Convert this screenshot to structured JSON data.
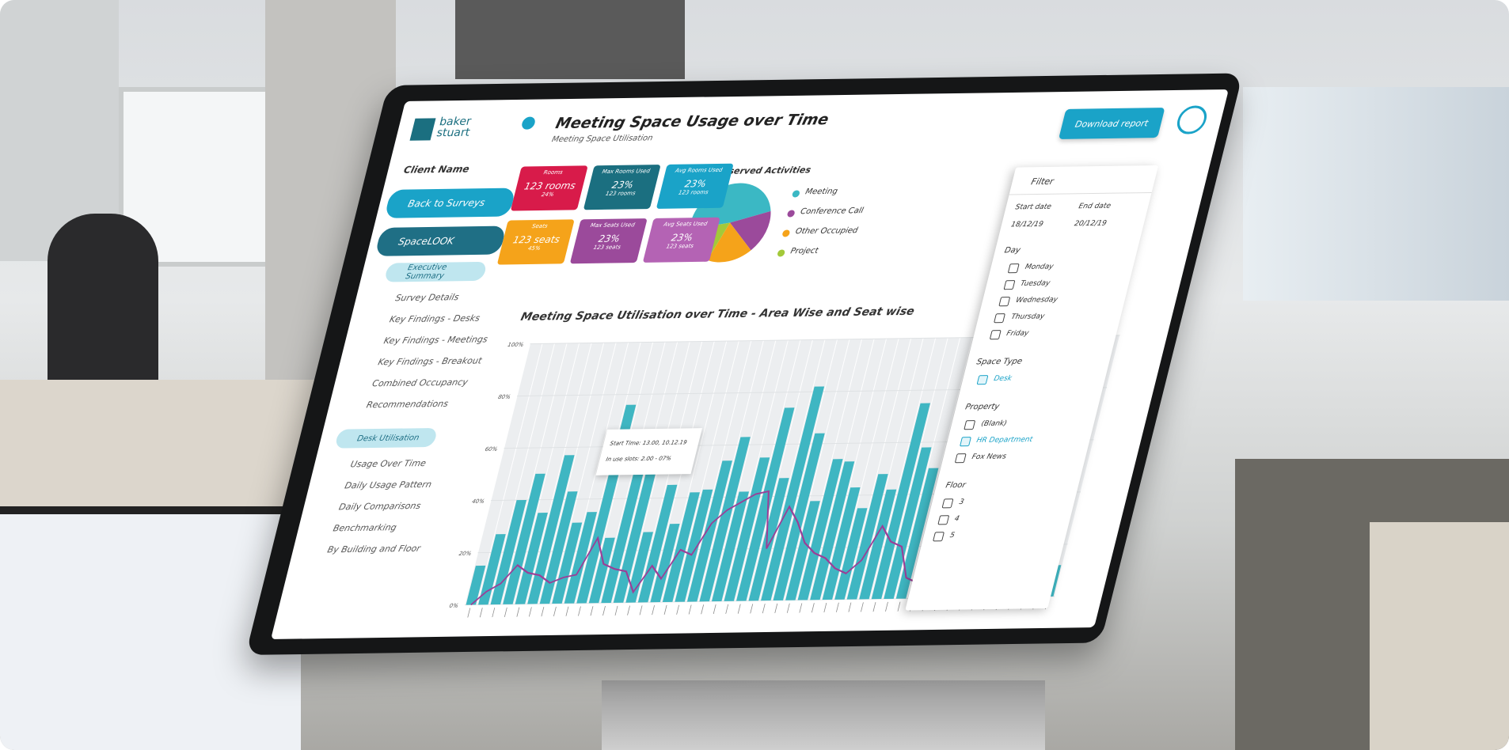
{
  "logo": "baker stuart",
  "header": {
    "title": "Meeting Space Usage over Time",
    "subtitle": "Meeting Space Utilisation",
    "download": "Download report"
  },
  "sidebar": {
    "client": "Client Name",
    "back": "Back to Surveys",
    "product": "SpaceLOOK",
    "sections": [
      {
        "title": "Executive Summary",
        "items": [
          "Survey Details",
          "Key Findings - Desks",
          "Key Findings - Meetings",
          "Key Findings - Breakout",
          "Combined Occupancy",
          "Recommendations"
        ]
      },
      {
        "title": "Desk Utilisation",
        "items": [
          "Usage Over Time",
          "Daily Usage Pattern",
          "Daily Comparisons",
          "Benchmarking",
          "By Building and Floor"
        ]
      }
    ]
  },
  "kpis": [
    {
      "label": "Rooms",
      "value": "123 rooms",
      "sub": "24%",
      "color": "#d81b4a"
    },
    {
      "label": "Max Rooms Used",
      "value": "23%",
      "sub": "123 rooms",
      "color": "#1b6f80"
    },
    {
      "label": "Avg Rooms Used",
      "value": "23%",
      "sub": "123 rooms",
      "color": "#1aa3c8"
    },
    {
      "label": "Seats",
      "value": "123 seats",
      "sub": "45%",
      "color": "#f5a31a"
    },
    {
      "label": "Max Seats Used",
      "value": "23%",
      "sub": "123 seats",
      "color": "#9b4a9b"
    },
    {
      "label": "Avg Seats Used",
      "value": "23%",
      "sub": "123 seats",
      "color": "#b463b4"
    }
  ],
  "pie": {
    "type": "pie",
    "title": "Observed Activities",
    "categories": [
      "Meeting",
      "Conference Call",
      "Other Occupied",
      "Project"
    ],
    "values": [
      48,
      17,
      18,
      17
    ],
    "colors": [
      "#3bb8c4",
      "#9b4a9b",
      "#f5a31a",
      "#a3c93a"
    ]
  },
  "chart_data": {
    "type": "bar",
    "title": "Meeting Space Utilisation over Time - Area Wise and Seat wise",
    "values": [
      15,
      27,
      40,
      50,
      35,
      57,
      43,
      31,
      35,
      76,
      25,
      50,
      62,
      27,
      45,
      30,
      42,
      43,
      54,
      63,
      42,
      55,
      74,
      47,
      82,
      64,
      38,
      54,
      53,
      43,
      35,
      48,
      42,
      75,
      58,
      50,
      47,
      35,
      60,
      35,
      45,
      46,
      40,
      52,
      44,
      38,
      30,
      12
    ],
    "color": "#3fb6c2",
    "line": {
      "values": [
        0,
        5,
        8,
        15,
        12,
        11,
        8,
        10,
        11,
        25,
        15,
        13,
        12,
        4,
        14,
        9,
        20,
        18,
        30,
        35,
        38,
        41,
        42,
        20,
        36,
        30,
        22,
        18,
        16,
        12,
        10,
        15,
        28,
        22,
        20,
        8,
        6,
        16,
        22,
        18,
        15,
        14,
        12,
        10,
        8,
        9,
        6,
        0
      ],
      "color": "#9b3f97"
    },
    "ylim": [
      0,
      100
    ],
    "yticks": [
      {
        "value": 0,
        "label": "0%"
      },
      {
        "value": 20,
        "label": "20%"
      },
      {
        "value": 40,
        "label": "40%"
      },
      {
        "value": 60,
        "label": "60%"
      },
      {
        "value": 80,
        "label": "80%"
      },
      {
        "value": 100,
        "label": "100%"
      }
    ],
    "grid": true,
    "tooltip": [
      "Start Time: 13.00, 10.12.19",
      "In use slots: 2.00 - 07%"
    ]
  },
  "filter": {
    "title": "Filter",
    "start_label": "Start date",
    "start": "18/12/19",
    "end_label": "End date",
    "end": "20/12/19",
    "groups": [
      {
        "title": "Day",
        "options": [
          "Monday",
          "Tuesday",
          "Wednesday",
          "Thursday",
          "Friday"
        ],
        "checked": [
          false,
          false,
          false,
          false,
          false
        ]
      },
      {
        "title": "Space Type",
        "options": [
          "Desk"
        ],
        "checked": [
          true
        ]
      },
      {
        "title": "Property",
        "options": [
          "(Blank)",
          "HR Department",
          "Fox News"
        ],
        "checked": [
          false,
          true,
          false
        ]
      },
      {
        "title": "Floor",
        "options": [
          "3",
          "4",
          "5"
        ],
        "checked": [
          false,
          false,
          false
        ]
      }
    ]
  }
}
